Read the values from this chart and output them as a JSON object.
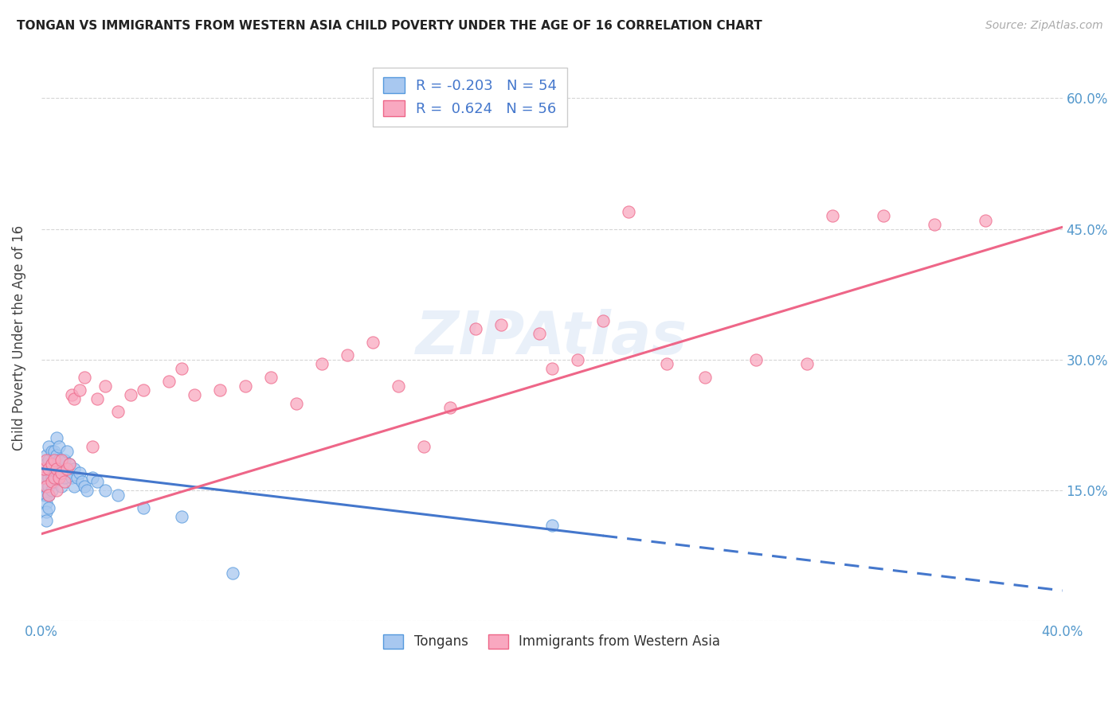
{
  "title": "TONGAN VS IMMIGRANTS FROM WESTERN ASIA CHILD POVERTY UNDER THE AGE OF 16 CORRELATION CHART",
  "source": "Source: ZipAtlas.com",
  "ylabel": "Child Poverty Under the Age of 16",
  "xmin": 0.0,
  "xmax": 0.4,
  "ymin": 0.0,
  "ymax": 0.65,
  "x_ticks": [
    0.0,
    0.05,
    0.1,
    0.15,
    0.2,
    0.25,
    0.3,
    0.35,
    0.4
  ],
  "y_ticks": [
    0.0,
    0.15,
    0.3,
    0.45,
    0.6
  ],
  "y_tick_labels_right": [
    "",
    "15.0%",
    "30.0%",
    "45.0%",
    "60.0%"
  ],
  "legend_label_1": "Tongans",
  "legend_label_2": "Immigrants from Western Asia",
  "R1": -0.203,
  "N1": 54,
  "R2": 0.624,
  "N2": 56,
  "color_tongans_fill": "#a8c8f0",
  "color_tongans_edge": "#5599dd",
  "color_immigrants_fill": "#f9a8c0",
  "color_immigrants_edge": "#ee6688",
  "color_line_tongans": "#4477cc",
  "color_line_immigrants": "#ee6688",
  "watermark": "ZIPAtlas",
  "tongans_x": [
    0.001,
    0.001,
    0.001,
    0.002,
    0.002,
    0.002,
    0.002,
    0.002,
    0.002,
    0.002,
    0.002,
    0.003,
    0.003,
    0.003,
    0.003,
    0.003,
    0.003,
    0.003,
    0.004,
    0.004,
    0.004,
    0.004,
    0.005,
    0.005,
    0.005,
    0.006,
    0.006,
    0.006,
    0.007,
    0.007,
    0.007,
    0.008,
    0.008,
    0.009,
    0.009,
    0.01,
    0.01,
    0.011,
    0.012,
    0.013,
    0.013,
    0.014,
    0.015,
    0.016,
    0.017,
    0.018,
    0.02,
    0.022,
    0.025,
    0.03,
    0.04,
    0.055,
    0.075,
    0.2
  ],
  "tongans_y": [
    0.17,
    0.155,
    0.145,
    0.19,
    0.18,
    0.165,
    0.155,
    0.145,
    0.135,
    0.125,
    0.115,
    0.2,
    0.185,
    0.175,
    0.165,
    0.155,
    0.145,
    0.13,
    0.195,
    0.18,
    0.165,
    0.15,
    0.195,
    0.175,
    0.16,
    0.21,
    0.19,
    0.17,
    0.2,
    0.185,
    0.165,
    0.175,
    0.155,
    0.185,
    0.165,
    0.195,
    0.17,
    0.18,
    0.165,
    0.175,
    0.155,
    0.165,
    0.17,
    0.16,
    0.155,
    0.15,
    0.165,
    0.16,
    0.15,
    0.145,
    0.13,
    0.12,
    0.055,
    0.11
  ],
  "immigrants_x": [
    0.001,
    0.001,
    0.002,
    0.002,
    0.003,
    0.003,
    0.004,
    0.004,
    0.005,
    0.005,
    0.006,
    0.006,
    0.007,
    0.008,
    0.008,
    0.009,
    0.01,
    0.011,
    0.012,
    0.013,
    0.015,
    0.017,
    0.02,
    0.022,
    0.025,
    0.03,
    0.035,
    0.04,
    0.05,
    0.055,
    0.06,
    0.07,
    0.08,
    0.09,
    0.1,
    0.11,
    0.12,
    0.13,
    0.14,
    0.15,
    0.16,
    0.17,
    0.18,
    0.195,
    0.2,
    0.21,
    0.22,
    0.23,
    0.245,
    0.26,
    0.28,
    0.3,
    0.31,
    0.33,
    0.35,
    0.37
  ],
  "immigrants_y": [
    0.165,
    0.175,
    0.155,
    0.185,
    0.145,
    0.175,
    0.16,
    0.18,
    0.165,
    0.185,
    0.15,
    0.175,
    0.165,
    0.17,
    0.185,
    0.16,
    0.175,
    0.18,
    0.26,
    0.255,
    0.265,
    0.28,
    0.2,
    0.255,
    0.27,
    0.24,
    0.26,
    0.265,
    0.275,
    0.29,
    0.26,
    0.265,
    0.27,
    0.28,
    0.25,
    0.295,
    0.305,
    0.32,
    0.27,
    0.2,
    0.245,
    0.335,
    0.34,
    0.33,
    0.29,
    0.3,
    0.345,
    0.47,
    0.295,
    0.28,
    0.3,
    0.295,
    0.465,
    0.465,
    0.455,
    0.46
  ],
  "line_tongans_x0": 0.0,
  "line_tongans_x_solid_end": 0.22,
  "line_tongans_x_dash_end": 0.4,
  "line_tongans_y0": 0.175,
  "line_tongans_slope": -0.35,
  "line_immigrants_x0": 0.0,
  "line_immigrants_x1": 0.4,
  "line_immigrants_y0": 0.1,
  "line_immigrants_slope": 0.88
}
